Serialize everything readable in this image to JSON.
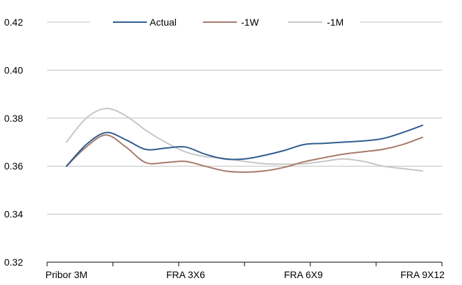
{
  "chart_data": {
    "type": "line",
    "x_ticks": [
      "Pribor 3M",
      "FRA 3X6",
      "FRA 6X9",
      "FRA 9X12"
    ],
    "x": [
      0,
      1,
      2,
      3,
      4,
      5,
      6,
      7,
      8,
      9,
      10,
      11,
      12,
      13,
      14,
      15,
      16,
      17,
      18
    ],
    "ylim": [
      0.32,
      0.42
    ],
    "y_ticks": [
      "0.32",
      "0.34",
      "0.36",
      "0.38",
      "0.40",
      "0.42"
    ],
    "grid": true,
    "legend_position": "top",
    "series": [
      {
        "name": "Actual",
        "color": "#2E5B8E",
        "values": [
          0.36,
          0.369,
          0.374,
          0.371,
          0.367,
          0.3675,
          0.368,
          0.365,
          0.363,
          0.363,
          0.3645,
          0.3665,
          0.369,
          0.3695,
          0.37,
          0.3705,
          0.3715,
          0.374,
          0.377
        ]
      },
      {
        "name": "-1W",
        "color": "#A5786A",
        "values": [
          0.36,
          0.368,
          0.373,
          0.368,
          0.3615,
          0.3615,
          0.362,
          0.36,
          0.358,
          0.3575,
          0.358,
          0.3595,
          0.3618,
          0.3635,
          0.365,
          0.366,
          0.367,
          0.369,
          0.372
        ]
      },
      {
        "name": "-1M",
        "color": "#C6C6C6",
        "values": [
          0.37,
          0.38,
          0.384,
          0.381,
          0.375,
          0.37,
          0.366,
          0.364,
          0.3632,
          0.362,
          0.361,
          0.3608,
          0.361,
          0.362,
          0.363,
          0.362,
          0.36,
          0.359,
          0.358
        ]
      }
    ]
  }
}
